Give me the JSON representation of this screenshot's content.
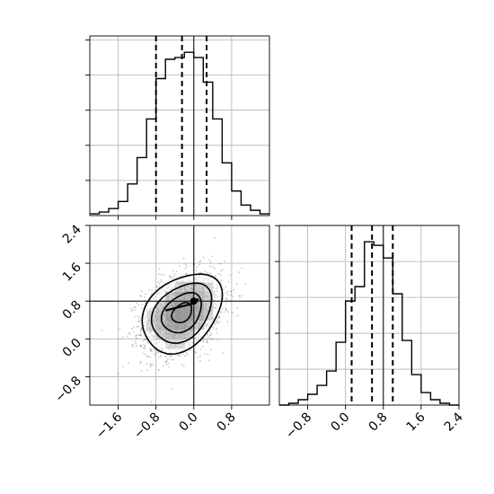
{
  "chart_data": [
    {
      "panel": "marginal-x",
      "type": "bar",
      "bins": [
        -2.1,
        -1.9,
        -1.7,
        -1.5,
        -1.3,
        -1.1,
        -0.9,
        -0.7,
        -0.5,
        -0.3,
        -0.1,
        0.1,
        0.3,
        0.5,
        0.7,
        0.9,
        1.1,
        1.3,
        1.5
      ],
      "values": [
        0.01,
        0.02,
        0.04,
        0.08,
        0.18,
        0.33,
        0.55,
        0.78,
        0.89,
        0.9,
        0.93,
        0.9,
        0.76,
        0.55,
        0.3,
        0.14,
        0.06,
        0.03,
        0.01
      ],
      "xlim": [
        -2.2,
        1.6
      ],
      "quantiles": [
        -0.8,
        -0.25,
        0.27
      ],
      "truth": 0.0,
      "grid": true,
      "y_tick_labels_visible": false
    },
    {
      "panel": "joint",
      "type": "heatmap",
      "xlim": [
        -2.2,
        1.6
      ],
      "ylim": [
        -1.4,
        2.4
      ],
      "x_ticks": [
        "−1.6",
        "−0.8",
        "0.0",
        "0.8"
      ],
      "x_tick_values": [
        -1.6,
        -0.8,
        0.0,
        0.8
      ],
      "y_ticks": [
        "−0.8",
        "0.0",
        "0.8",
        "1.6",
        "2.4"
      ],
      "y_tick_values": [
        -0.8,
        0.0,
        0.8,
        1.6,
        2.4
      ],
      "mean": [
        -0.25,
        0.55
      ],
      "std": [
        0.42,
        0.42
      ],
      "correlation": 0.33,
      "contour_levels_sigma": [
        0.5,
        1.0,
        1.5,
        2.0
      ],
      "truth": [
        0.0,
        0.8
      ],
      "grid": true
    },
    {
      "panel": "marginal-y",
      "type": "bar",
      "bins": [
        -1.3,
        -1.1,
        -0.9,
        -0.7,
        -0.5,
        -0.3,
        -0.1,
        0.1,
        0.3,
        0.5,
        0.7,
        0.9,
        1.1,
        1.3,
        1.5,
        1.7,
        1.9,
        2.1,
        2.3
      ],
      "values": [
        0.0,
        0.01,
        0.03,
        0.06,
        0.11,
        0.19,
        0.35,
        0.58,
        0.66,
        0.91,
        0.89,
        0.82,
        0.62,
        0.36,
        0.17,
        0.07,
        0.03,
        0.01,
        0.0
      ],
      "xlim": [
        -1.4,
        2.4
      ],
      "x_ticks": [
        "−0.8",
        "0.0",
        "0.8",
        "1.6",
        "2.4"
      ],
      "x_tick_values": [
        -0.8,
        0.0,
        0.8,
        1.6,
        2.4
      ],
      "quantiles": [
        0.13,
        0.56,
        1.0
      ],
      "truth": 0.8,
      "grid": true,
      "y_tick_labels_visible": false
    }
  ]
}
